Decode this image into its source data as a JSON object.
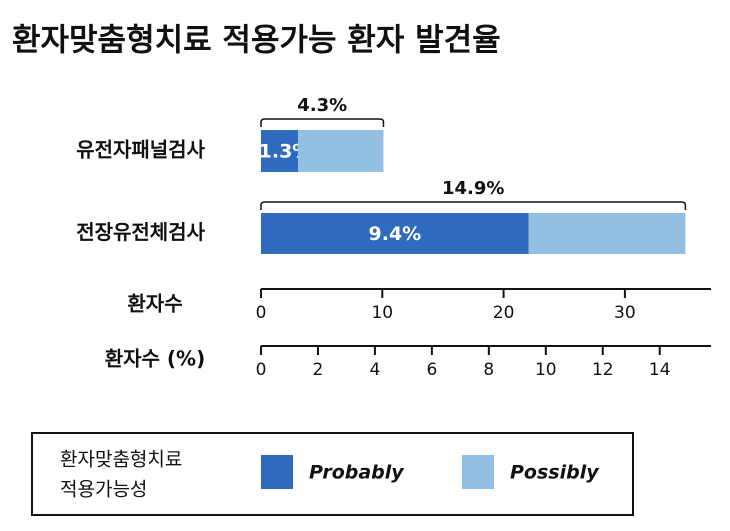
{
  "chart_data": {
    "type": "stacked-bar-horizontal",
    "title": "환자맞춤형치료 적용가능 환자 발견율",
    "categories": [
      "유전자패널검사",
      "전장유전체검사"
    ],
    "series": [
      {
        "name": "Probably",
        "color": "#2f6bbf",
        "values": [
          1.3,
          9.4
        ],
        "value_labels": [
          "1.3%",
          "9.4%"
        ]
      },
      {
        "name": "Possibly",
        "color": "#93c0e2",
        "values": [
          3.0,
          5.5
        ]
      }
    ],
    "totals": [
      4.3,
      14.9
    ],
    "total_labels": [
      "4.3%",
      "14.9%"
    ],
    "xlabel": "환자수 (%)",
    "xlim": [
      0,
      15.8
    ],
    "xticks": [
      0,
      2,
      4,
      6,
      8,
      10,
      12,
      14
    ],
    "x2label": "환자수",
    "x2lim": [
      0,
      37.1
    ],
    "x2ticks": [
      0,
      10,
      20,
      30
    ],
    "legend_title": [
      "환자맞춤형치료",
      "적용가능성"
    ]
  }
}
